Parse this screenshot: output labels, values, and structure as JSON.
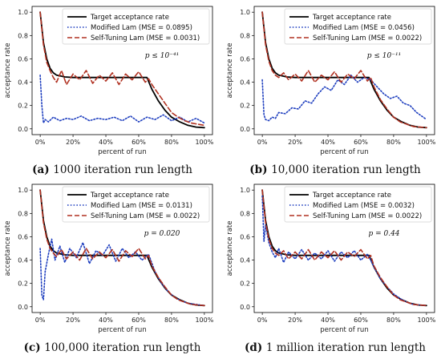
{
  "chart_data": [
    {
      "panel": "a",
      "type": "line",
      "caption_label": "(a)",
      "caption_text": "1000 iteration run length",
      "xlabel": "percent of run",
      "ylabel": "acceptance rate",
      "xlim": [
        0,
        100
      ],
      "ylim": [
        0,
        1
      ],
      "x_ticks": [
        "0%",
        "20%",
        "40%",
        "60%",
        "80%",
        "100%"
      ],
      "y_ticks": [
        "0.0",
        "0.2",
        "0.4",
        "0.6",
        "0.8",
        "1.0"
      ],
      "legend": [
        "Target acceptance rate",
        "Modified Lam (MSE = 0.0895)",
        "Self-Tuning Lam (MSE = 0.0031)"
      ],
      "annotation": "p ≤ 10⁻⁴¹",
      "series": [
        {
          "name": "Target acceptance rate",
          "style": "solid",
          "color": "#000000",
          "x": [
            0,
            2,
            4,
            6,
            8,
            10,
            15,
            20,
            30,
            40,
            50,
            60,
            65,
            68,
            72,
            76,
            80,
            85,
            90,
            95,
            100
          ],
          "y": [
            1.0,
            0.74,
            0.6,
            0.52,
            0.48,
            0.46,
            0.445,
            0.44,
            0.44,
            0.44,
            0.44,
            0.44,
            0.44,
            0.34,
            0.24,
            0.16,
            0.1,
            0.06,
            0.03,
            0.015,
            0.01
          ]
        },
        {
          "name": "Modified Lam (MSE = 0.0895)",
          "style": "dotted",
          "color": "#1f3fbf",
          "x": [
            0,
            1,
            2,
            3,
            5,
            8,
            12,
            16,
            20,
            25,
            30,
            35,
            40,
            45,
            50,
            55,
            60,
            65,
            70,
            75,
            80,
            85,
            90,
            95,
            100
          ],
          "y": [
            0.46,
            0.2,
            0.05,
            0.08,
            0.06,
            0.1,
            0.07,
            0.09,
            0.08,
            0.11,
            0.07,
            0.09,
            0.08,
            0.1,
            0.07,
            0.11,
            0.06,
            0.1,
            0.08,
            0.12,
            0.07,
            0.1,
            0.06,
            0.09,
            0.05
          ]
        },
        {
          "name": "Self-Tuning Lam (MSE = 0.0031)",
          "style": "dashed",
          "color": "#b03020",
          "x": [
            0,
            2,
            4,
            6,
            8,
            10,
            13,
            16,
            20,
            24,
            28,
            32,
            36,
            40,
            44,
            48,
            52,
            56,
            60,
            64,
            66,
            68,
            72,
            76,
            80,
            84,
            88,
            92,
            96,
            100
          ],
          "y": [
            1.0,
            0.72,
            0.57,
            0.5,
            0.44,
            0.4,
            0.5,
            0.38,
            0.47,
            0.42,
            0.5,
            0.39,
            0.46,
            0.41,
            0.48,
            0.38,
            0.47,
            0.42,
            0.49,
            0.4,
            0.43,
            0.38,
            0.3,
            0.22,
            0.14,
            0.1,
            0.07,
            0.05,
            0.04,
            0.03
          ]
        }
      ]
    },
    {
      "panel": "b",
      "type": "line",
      "caption_label": "(b)",
      "caption_text": "10,000 iteration run length",
      "xlabel": "percent of run",
      "ylabel": "acceptance rate",
      "xlim": [
        0,
        100
      ],
      "ylim": [
        0,
        1
      ],
      "x_ticks": [
        "0%",
        "20%",
        "40%",
        "60%",
        "80%",
        "100%"
      ],
      "y_ticks": [
        "0.0",
        "0.2",
        "0.4",
        "0.6",
        "0.8",
        "1.0"
      ],
      "legend": [
        "Target acceptance rate",
        "Modified Lam (MSE = 0.0456)",
        "Self-Tuning Lam (MSE = 0.0022)"
      ],
      "annotation": "p ≤ 10⁻¹¹",
      "series": [
        {
          "name": "Target acceptance rate",
          "style": "solid",
          "color": "#000000",
          "x": [
            0,
            2,
            4,
            6,
            8,
            10,
            15,
            20,
            30,
            40,
            50,
            60,
            65,
            68,
            72,
            76,
            80,
            85,
            90,
            95,
            100
          ],
          "y": [
            1.0,
            0.74,
            0.6,
            0.52,
            0.48,
            0.46,
            0.445,
            0.44,
            0.44,
            0.44,
            0.44,
            0.44,
            0.44,
            0.34,
            0.24,
            0.16,
            0.1,
            0.06,
            0.03,
            0.015,
            0.01
          ]
        },
        {
          "name": "Modified Lam (MSE = 0.0456)",
          "style": "dotted",
          "color": "#1f3fbf",
          "x": [
            0,
            1,
            2,
            4,
            6,
            8,
            10,
            14,
            18,
            22,
            26,
            30,
            34,
            38,
            42,
            46,
            50,
            54,
            58,
            62,
            66,
            70,
            74,
            78,
            82,
            86,
            90,
            94,
            98,
            100
          ],
          "y": [
            0.42,
            0.12,
            0.08,
            0.07,
            0.1,
            0.09,
            0.14,
            0.13,
            0.18,
            0.17,
            0.24,
            0.22,
            0.3,
            0.36,
            0.33,
            0.42,
            0.38,
            0.46,
            0.4,
            0.44,
            0.42,
            0.36,
            0.3,
            0.26,
            0.28,
            0.22,
            0.2,
            0.14,
            0.1,
            0.08
          ]
        },
        {
          "name": "Self-Tuning Lam (MSE = 0.0022)",
          "style": "dashed",
          "color": "#b03020",
          "x": [
            0,
            2,
            4,
            6,
            8,
            10,
            13,
            16,
            20,
            24,
            28,
            32,
            36,
            40,
            44,
            48,
            52,
            56,
            60,
            64,
            66,
            68,
            72,
            76,
            80,
            84,
            88,
            92,
            96,
            100
          ],
          "y": [
            1.0,
            0.72,
            0.58,
            0.5,
            0.46,
            0.44,
            0.48,
            0.42,
            0.47,
            0.41,
            0.5,
            0.4,
            0.46,
            0.42,
            0.49,
            0.4,
            0.47,
            0.43,
            0.5,
            0.41,
            0.44,
            0.36,
            0.25,
            0.17,
            0.1,
            0.06,
            0.04,
            0.02,
            0.015,
            0.01
          ]
        }
      ]
    },
    {
      "panel": "c",
      "type": "line",
      "caption_label": "(c)",
      "caption_text": "100,000 iteration run length",
      "xlabel": "percent of run",
      "ylabel": "acceptance rate",
      "xlim": [
        0,
        100
      ],
      "ylim": [
        0,
        1
      ],
      "x_ticks": [
        "0%",
        "20%",
        "40%",
        "60%",
        "80%",
        "100%"
      ],
      "y_ticks": [
        "0.0",
        "0.2",
        "0.4",
        "0.6",
        "0.8",
        "1.0"
      ],
      "legend": [
        "Target acceptance rate",
        "Modified Lam (MSE = 0.0131)",
        "Self-Tuning Lam (MSE = 0.0022)"
      ],
      "annotation": "p = 0.020",
      "series": [
        {
          "name": "Target acceptance rate",
          "style": "solid",
          "color": "#000000",
          "x": [
            0,
            2,
            4,
            6,
            8,
            10,
            15,
            20,
            30,
            40,
            50,
            60,
            65,
            68,
            72,
            76,
            80,
            85,
            90,
            95,
            100
          ],
          "y": [
            1.0,
            0.74,
            0.6,
            0.52,
            0.48,
            0.46,
            0.445,
            0.44,
            0.44,
            0.44,
            0.44,
            0.44,
            0.44,
            0.34,
            0.24,
            0.16,
            0.1,
            0.06,
            0.03,
            0.015,
            0.01
          ]
        },
        {
          "name": "Modified Lam (MSE = 0.0131)",
          "style": "dotted",
          "color": "#1f3fbf",
          "x": [
            0,
            1,
            2,
            3,
            5,
            7,
            9,
            12,
            15,
            18,
            22,
            26,
            30,
            34,
            38,
            42,
            46,
            50,
            54,
            58,
            62,
            66,
            70,
            74,
            78,
            82,
            86,
            90,
            95,
            100
          ],
          "y": [
            0.5,
            0.1,
            0.06,
            0.3,
            0.45,
            0.58,
            0.4,
            0.52,
            0.38,
            0.5,
            0.42,
            0.55,
            0.37,
            0.48,
            0.44,
            0.53,
            0.39,
            0.5,
            0.42,
            0.47,
            0.4,
            0.45,
            0.3,
            0.2,
            0.13,
            0.08,
            0.05,
            0.03,
            0.02,
            0.01
          ]
        },
        {
          "name": "Self-Tuning Lam (MSE = 0.0022)",
          "style": "dashed",
          "color": "#b03020",
          "x": [
            0,
            2,
            4,
            6,
            8,
            10,
            13,
            16,
            20,
            24,
            28,
            32,
            36,
            40,
            44,
            48,
            52,
            56,
            60,
            64,
            66,
            68,
            72,
            76,
            80,
            84,
            88,
            92,
            96,
            100
          ],
          "y": [
            1.0,
            0.72,
            0.58,
            0.5,
            0.46,
            0.43,
            0.49,
            0.41,
            0.47,
            0.4,
            0.5,
            0.41,
            0.47,
            0.42,
            0.49,
            0.39,
            0.48,
            0.43,
            0.5,
            0.41,
            0.44,
            0.35,
            0.25,
            0.17,
            0.1,
            0.06,
            0.04,
            0.02,
            0.015,
            0.01
          ]
        }
      ]
    },
    {
      "panel": "d",
      "type": "line",
      "caption_label": "(d)",
      "caption_text": "1 million iteration run length",
      "xlabel": "percent of run",
      "ylabel": "acceptance rate",
      "xlim": [
        0,
        100
      ],
      "ylim": [
        0,
        1
      ],
      "x_ticks": [
        "0%",
        "20%",
        "40%",
        "60%",
        "80%",
        "100%"
      ],
      "y_ticks": [
        "0.0",
        "0.2",
        "0.4",
        "0.6",
        "0.8",
        "1.0"
      ],
      "legend": [
        "Target acceptance rate",
        "Modified Lam (MSE = 0.0032)",
        "Self-Tuning Lam (MSE = 0.0022)"
      ],
      "annotation": "p = 0.44",
      "series": [
        {
          "name": "Target acceptance rate",
          "style": "solid",
          "color": "#000000",
          "x": [
            0,
            2,
            4,
            6,
            8,
            10,
            15,
            20,
            30,
            40,
            50,
            60,
            65,
            68,
            72,
            76,
            80,
            85,
            90,
            95,
            100
          ],
          "y": [
            1.0,
            0.74,
            0.6,
            0.52,
            0.48,
            0.46,
            0.445,
            0.44,
            0.44,
            0.44,
            0.44,
            0.44,
            0.44,
            0.34,
            0.24,
            0.16,
            0.1,
            0.06,
            0.03,
            0.015,
            0.01
          ]
        },
        {
          "name": "Modified Lam (MSE = 0.0032)",
          "style": "dotted",
          "color": "#1f3fbf",
          "x": [
            0,
            1,
            2,
            4,
            6,
            8,
            10,
            13,
            16,
            20,
            24,
            28,
            32,
            36,
            40,
            44,
            48,
            52,
            56,
            60,
            64,
            66,
            68,
            72,
            76,
            80,
            84,
            88,
            92,
            96,
            100
          ],
          "y": [
            0.95,
            0.56,
            0.7,
            0.55,
            0.47,
            0.42,
            0.5,
            0.38,
            0.47,
            0.41,
            0.49,
            0.4,
            0.46,
            0.41,
            0.48,
            0.39,
            0.47,
            0.42,
            0.48,
            0.4,
            0.45,
            0.4,
            0.34,
            0.24,
            0.17,
            0.11,
            0.07,
            0.04,
            0.02,
            0.015,
            0.01
          ]
        },
        {
          "name": "Self-Tuning Lam (MSE = 0.0022)",
          "style": "dashed",
          "color": "#b03020",
          "x": [
            0,
            2,
            4,
            6,
            8,
            10,
            13,
            16,
            20,
            24,
            28,
            32,
            36,
            40,
            44,
            48,
            52,
            56,
            60,
            64,
            66,
            68,
            72,
            76,
            80,
            84,
            88,
            92,
            96,
            100
          ],
          "y": [
            1.0,
            0.72,
            0.58,
            0.5,
            0.46,
            0.44,
            0.48,
            0.41,
            0.47,
            0.41,
            0.49,
            0.4,
            0.47,
            0.42,
            0.48,
            0.4,
            0.47,
            0.43,
            0.49,
            0.41,
            0.44,
            0.35,
            0.25,
            0.17,
            0.1,
            0.06,
            0.04,
            0.02,
            0.015,
            0.01
          ]
        }
      ]
    }
  ]
}
